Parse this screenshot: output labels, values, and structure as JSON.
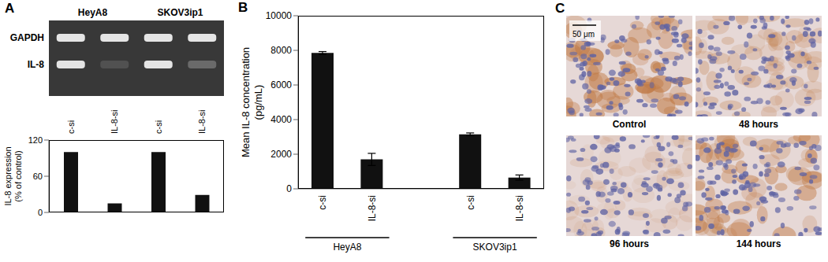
{
  "panel_letters": [
    "A",
    "B",
    "C"
  ],
  "gel": {
    "bands": [
      "GAPDH",
      "IL-8"
    ]
  },
  "chart_data": [
    {
      "type": "bar",
      "categories": [
        "c-si",
        "IL-8-si",
        "c-si",
        "IL-8-si"
      ],
      "values": [
        100,
        15,
        100,
        29
      ],
      "color": "#111111",
      "ylabel": "IL-8 expression (% of control)",
      "ylim": [
        0,
        120
      ],
      "yticks": [
        0,
        60,
        120
      ],
      "groups": [
        {
          "label": "HeyA8",
          "members": [
            0,
            1
          ]
        },
        {
          "label": "SKOV3ip1",
          "members": [
            2,
            3
          ]
        }
      ]
    },
    {
      "type": "bar",
      "categories": [
        "c-si",
        "IL-8-si",
        null,
        "c-si",
        "IL-8-si"
      ],
      "values": [
        7850,
        1700,
        null,
        3150,
        650
      ],
      "errors": [
        80,
        350,
        null,
        80,
        150
      ],
      "color": "#111111",
      "ylabel": "Mean IL-8 concentration (pg/mL)",
      "ylim": [
        0,
        10000
      ],
      "yticks": [
        0,
        2000,
        4000,
        6000,
        8000,
        10000
      ],
      "groups": [
        {
          "label": "HeyA8",
          "members": [
            0,
            1
          ]
        },
        {
          "label": "SKOV3ip1",
          "members": [
            3,
            4
          ]
        }
      ]
    }
  ],
  "histology": {
    "scale_bar": "50 μm",
    "images": [
      {
        "caption": "Control"
      },
      {
        "caption": "48 hours"
      },
      {
        "caption": "96 hours"
      },
      {
        "caption": "144 hours"
      }
    ]
  }
}
